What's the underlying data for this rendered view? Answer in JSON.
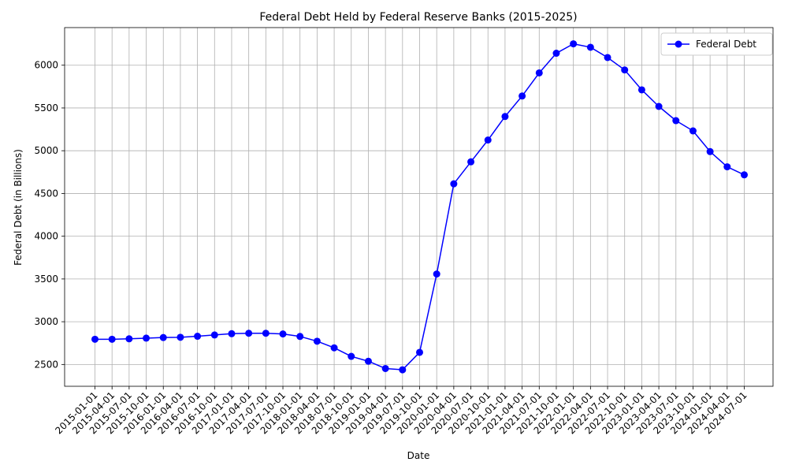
{
  "chart_data": {
    "type": "line",
    "title": "Federal Debt Held by Federal Reserve Banks (2015-2025)",
    "xlabel": "Date",
    "ylabel": "Federal Debt (in Billions)",
    "ylim": [
      2245,
      6440
    ],
    "yticks": [
      2500,
      3000,
      3500,
      4000,
      4500,
      5000,
      5500,
      6000
    ],
    "grid": true,
    "legend_position": "top-right",
    "colors": {
      "series": "#0000ff",
      "grid": "#b0b0b0"
    },
    "categories": [
      "2015-01-01",
      "2015-04-01",
      "2015-07-01",
      "2015-10-01",
      "2016-01-01",
      "2016-04-01",
      "2016-07-01",
      "2016-10-01",
      "2017-01-01",
      "2017-04-01",
      "2017-07-01",
      "2017-10-01",
      "2018-01-01",
      "2018-04-01",
      "2018-07-01",
      "2018-10-01",
      "2019-01-01",
      "2019-04-01",
      "2019-07-01",
      "2019-10-01",
      "2020-01-01",
      "2020-04-01",
      "2020-07-01",
      "2020-10-01",
      "2021-01-01",
      "2021-04-01",
      "2021-07-01",
      "2021-10-01",
      "2022-01-01",
      "2022-04-01",
      "2022-07-01",
      "2022-10-01",
      "2023-01-01",
      "2023-04-01",
      "2023-07-01",
      "2023-10-01",
      "2024-01-01",
      "2024-04-01",
      "2024-07-01"
    ],
    "series": [
      {
        "name": "Federal Debt",
        "values": [
          2795,
          2795,
          2800,
          2808,
          2815,
          2818,
          2830,
          2845,
          2860,
          2865,
          2865,
          2857,
          2828,
          2772,
          2695,
          2595,
          2538,
          2453,
          2438,
          2642,
          3558,
          4613,
          4870,
          5125,
          5400,
          5640,
          5910,
          6140,
          6250,
          6210,
          6090,
          5945,
          5712,
          5518,
          5352,
          5232,
          4990,
          4812,
          4718
        ]
      }
    ]
  }
}
